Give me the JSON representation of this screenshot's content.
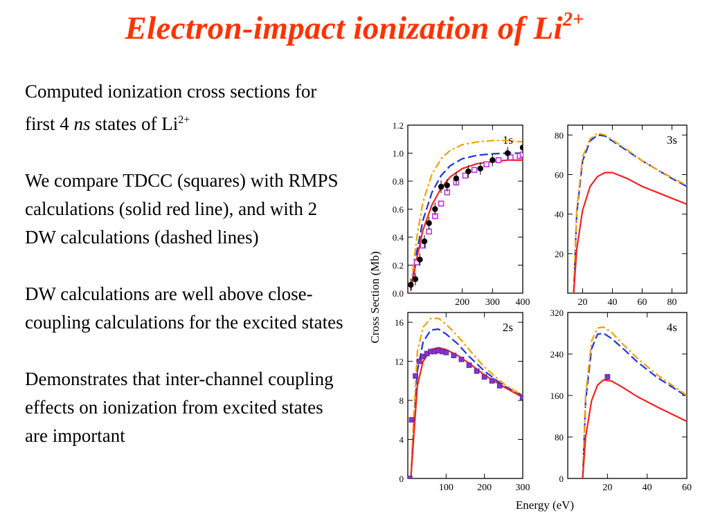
{
  "title": {
    "main": "Electron-impact ionization of Li",
    "sup": "2+"
  },
  "text": {
    "p1": {
      "a": "Computed ionization cross sections for first 4 ",
      "em": "ns",
      "b": " states of Li",
      "sup": "2+"
    },
    "p2": "We compare TDCC (squares) with RMPS calculations (solid red line), and with 2 DW calculations (dashed lines)",
    "p3": "DW calculations are well above close-coupling calculations for the excited states",
    "p4": "Demonstrates that inter-channel coupling effects on ionization from excited states are important"
  },
  "figure": {
    "ylabel": "Cross Section (Mb)",
    "xlabel": "Energy (eV)",
    "colors": {
      "rmps": "#ee2222",
      "dw1": "#1a33dd",
      "dw2": "#f0a000",
      "tdcc": "#8833cc",
      "tdcc_open": "#bb33dd",
      "expt": "#000000"
    }
  },
  "chart_data": [
    {
      "type": "line",
      "panel_label": "1s",
      "xlim": [
        20,
        400
      ],
      "ylim": [
        0,
        1.2
      ],
      "xticks": [
        200,
        300,
        400
      ],
      "yticks": [
        0.0,
        0.2,
        0.4,
        0.6,
        0.8,
        1.0,
        1.2
      ],
      "xtick_labels": [
        "200",
        "300",
        "400"
      ],
      "ytick_labels": [
        "0.0",
        "0.2",
        "0.4",
        "0.6",
        "0.8",
        "1.0",
        "1.2"
      ],
      "series": [
        {
          "style": "dw1",
          "x": [
            30,
            50,
            70,
            100,
            130,
            160,
            200,
            250,
            300,
            350,
            400
          ],
          "y": [
            0.02,
            0.3,
            0.52,
            0.72,
            0.84,
            0.91,
            0.96,
            0.985,
            0.995,
            1.0,
            1.0
          ]
        },
        {
          "style": "dw2",
          "x": [
            30,
            50,
            70,
            100,
            130,
            160,
            200,
            250,
            300,
            350,
            400
          ],
          "y": [
            0.05,
            0.4,
            0.65,
            0.85,
            0.96,
            1.02,
            1.06,
            1.08,
            1.09,
            1.09,
            1.08
          ]
        },
        {
          "style": "rmps",
          "x": [
            30,
            50,
            70,
            100,
            130,
            160,
            200,
            250,
            300,
            350,
            400
          ],
          "y": [
            0.02,
            0.25,
            0.45,
            0.63,
            0.75,
            0.83,
            0.89,
            0.925,
            0.94,
            0.95,
            0.95
          ]
        }
      ],
      "points": [
        {
          "style": "tdcc_open",
          "marker": "open-square",
          "x": [
            50,
            70,
            90,
            110,
            130,
            150,
            180,
            210,
            240,
            280,
            320,
            360,
            390,
            400
          ],
          "y": [
            0.22,
            0.34,
            0.44,
            0.55,
            0.64,
            0.72,
            0.79,
            0.84,
            0.88,
            0.92,
            0.95,
            0.97,
            0.98,
            0.99
          ]
        },
        {
          "style": "expt",
          "marker": "filled-circle",
          "x": [
            30,
            45,
            60,
            75,
            90,
            110,
            130,
            150,
            180,
            220,
            260,
            300,
            350,
            400
          ],
          "y": [
            0.06,
            0.1,
            0.24,
            0.37,
            0.5,
            0.6,
            0.76,
            0.77,
            0.82,
            0.87,
            0.89,
            0.95,
            1.0,
            1.04
          ]
        }
      ]
    },
    {
      "type": "line",
      "panel_label": "3s",
      "xlim": [
        10,
        90
      ],
      "ylim": [
        0,
        85
      ],
      "xticks": [
        20,
        40,
        60,
        80
      ],
      "yticks": [
        20,
        40,
        60,
        80
      ],
      "xtick_labels": [
        "20",
        "40",
        "60",
        "80"
      ],
      "ytick_labels": [
        "20",
        "40",
        "60",
        "80"
      ],
      "series": [
        {
          "style": "dw1",
          "x": [
            14,
            16,
            20,
            25,
            30,
            35,
            40,
            50,
            60,
            70,
            80,
            90
          ],
          "y": [
            0,
            40,
            67,
            77,
            80,
            79.5,
            77,
            72,
            67,
            62.5,
            58,
            54
          ]
        },
        {
          "style": "dw2",
          "x": [
            14,
            16,
            20,
            25,
            30,
            35,
            40,
            50,
            60,
            70,
            80,
            90
          ],
          "y": [
            0,
            42,
            69,
            78,
            81,
            80,
            77.5,
            72.5,
            67,
            62.5,
            58.5,
            54.5
          ]
        },
        {
          "style": "rmps",
          "x": [
            14,
            16,
            20,
            25,
            30,
            35,
            40,
            50,
            60,
            70,
            80,
            90
          ],
          "y": [
            0,
            22,
            42,
            54,
            59,
            61,
            61,
            58,
            54,
            51,
            48,
            45
          ]
        }
      ],
      "points": []
    },
    {
      "type": "line",
      "panel_label": "2s",
      "xlim": [
        0,
        300
      ],
      "ylim": [
        0,
        17
      ],
      "xticks": [
        100,
        200,
        300
      ],
      "yticks": [
        0,
        4,
        8,
        12,
        16
      ],
      "xtick_labels": [
        "100",
        "200",
        "300"
      ],
      "ytick_labels": [
        "0",
        "4",
        "8",
        "12",
        "16"
      ],
      "series": [
        {
          "style": "dw1",
          "x": [
            8,
            15,
            25,
            40,
            60,
            80,
            100,
            130,
            160,
            200,
            250,
            300
          ],
          "y": [
            0,
            5,
            11,
            14,
            15.2,
            15.3,
            14.8,
            13.8,
            12.5,
            11,
            9.5,
            8.5
          ]
        },
        {
          "style": "dw2",
          "x": [
            8,
            15,
            25,
            40,
            60,
            80,
            100,
            130,
            160,
            200,
            250,
            300
          ],
          "y": [
            0,
            6,
            13,
            15.5,
            16.4,
            16.4,
            15.8,
            14.6,
            13.2,
            11.4,
            9.7,
            8.5
          ]
        },
        {
          "style": "rmps",
          "x": [
            8,
            15,
            25,
            40,
            60,
            80,
            100,
            130,
            160,
            200,
            250,
            300
          ],
          "y": [
            0,
            4,
            9.5,
            12,
            13.2,
            13.4,
            13.2,
            12.6,
            11.8,
            10.6,
            9.4,
            8.3
          ]
        }
      ],
      "points": [
        {
          "style": "tdcc",
          "marker": "filled-square",
          "x": [
            5,
            10,
            20,
            30,
            40,
            50,
            60,
            70,
            80,
            90,
            100,
            120,
            140,
            160,
            180,
            200,
            220,
            240,
            300
          ],
          "y": [
            0,
            6,
            10.5,
            12,
            12.5,
            12.8,
            13,
            13,
            13.1,
            13,
            12.9,
            12.6,
            12.2,
            11.6,
            11,
            10.4,
            10,
            9.5,
            8.3
          ]
        }
      ]
    },
    {
      "type": "line",
      "panel_label": "4s",
      "xlim": [
        0,
        60
      ],
      "ylim": [
        0,
        320
      ],
      "xticks": [
        20,
        40,
        60
      ],
      "yticks": [
        0,
        80,
        160,
        240,
        320
      ],
      "xtick_labels": [
        "20",
        "40",
        "60"
      ],
      "ytick_labels": [
        "0",
        "80",
        "160",
        "240",
        "320"
      ],
      "series": [
        {
          "style": "dw1",
          "x": [
            7.5,
            9,
            12,
            15,
            18,
            22,
            28,
            35,
            45,
            60
          ],
          "y": [
            0,
            150,
            250,
            278,
            280,
            270,
            250,
            225,
            195,
            158
          ]
        },
        {
          "style": "dw2",
          "x": [
            7.5,
            9,
            12,
            15,
            18,
            22,
            28,
            35,
            45,
            60
          ],
          "y": [
            0,
            160,
            265,
            290,
            292,
            282,
            258,
            232,
            200,
            160
          ]
        },
        {
          "style": "rmps",
          "x": [
            7.5,
            9,
            12,
            15,
            18,
            22,
            28,
            35,
            45,
            60
          ],
          "y": [
            0,
            80,
            150,
            180,
            190,
            188,
            175,
            158,
            138,
            110
          ]
        }
      ],
      "points": [
        {
          "style": "tdcc",
          "marker": "filled-square",
          "x": [
            20
          ],
          "y": [
            196
          ]
        }
      ]
    }
  ]
}
